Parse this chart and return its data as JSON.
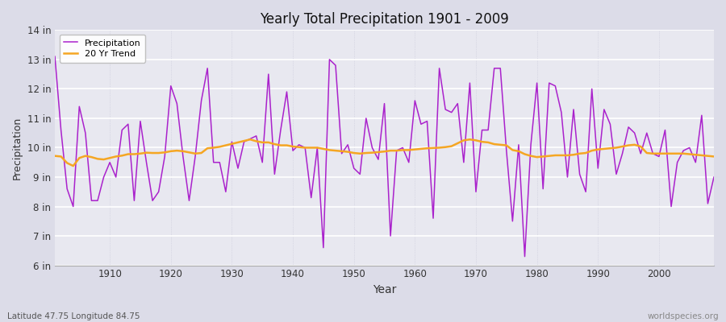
{
  "title": "Yearly Total Precipitation 1901 - 2009",
  "xlabel": "Year",
  "ylabel": "Precipitation",
  "subtitle_left": "Latitude 47.75 Longitude 84.75",
  "subtitle_right": "worldspecies.org",
  "ylim": [
    6,
    14
  ],
  "yticks": [
    6,
    7,
    8,
    9,
    10,
    11,
    12,
    13,
    14
  ],
  "ytick_labels": [
    "6 in",
    "7 in",
    "8 in",
    "9 in",
    "10 in",
    "11 in",
    "12 in",
    "13 in",
    "14 in"
  ],
  "xlim": [
    1901,
    2009
  ],
  "fig_bg_color": "#dcdce8",
  "plot_bg_color": "#e8e8f0",
  "line_color_precip": "#aa22cc",
  "line_color_trend": "#f5a623",
  "legend_labels": [
    "Precipitation",
    "20 Yr Trend"
  ],
  "years": [
    1901,
    1902,
    1903,
    1904,
    1905,
    1906,
    1907,
    1908,
    1909,
    1910,
    1911,
    1912,
    1913,
    1914,
    1915,
    1916,
    1917,
    1918,
    1919,
    1920,
    1921,
    1922,
    1923,
    1924,
    1925,
    1926,
    1927,
    1928,
    1929,
    1930,
    1931,
    1932,
    1933,
    1934,
    1935,
    1936,
    1937,
    1938,
    1939,
    1940,
    1941,
    1942,
    1943,
    1944,
    1945,
    1946,
    1947,
    1948,
    1949,
    1950,
    1951,
    1952,
    1953,
    1954,
    1955,
    1956,
    1957,
    1958,
    1959,
    1960,
    1961,
    1962,
    1963,
    1964,
    1965,
    1966,
    1967,
    1968,
    1969,
    1970,
    1971,
    1972,
    1973,
    1974,
    1975,
    1976,
    1977,
    1978,
    1979,
    1980,
    1981,
    1982,
    1983,
    1984,
    1985,
    1986,
    1987,
    1988,
    1989,
    1990,
    1991,
    1992,
    1993,
    1994,
    1995,
    1996,
    1997,
    1998,
    1999,
    2000,
    2001,
    2002,
    2003,
    2004,
    2005,
    2006,
    2007,
    2008,
    2009
  ],
  "precip": [
    13.1,
    10.6,
    8.6,
    8.0,
    11.4,
    10.5,
    8.2,
    8.2,
    9.0,
    9.5,
    9.0,
    10.6,
    10.8,
    8.2,
    10.9,
    9.5,
    8.2,
    8.5,
    9.7,
    12.1,
    11.5,
    9.7,
    8.2,
    9.7,
    11.6,
    12.7,
    9.5,
    9.5,
    8.5,
    10.2,
    9.3,
    10.2,
    10.3,
    10.4,
    9.5,
    12.5,
    9.1,
    10.6,
    11.9,
    9.9,
    10.1,
    10.0,
    8.3,
    10.0,
    6.6,
    13.0,
    12.8,
    9.8,
    10.1,
    9.3,
    9.1,
    11.0,
    10.0,
    9.6,
    11.5,
    7.0,
    9.9,
    10.0,
    9.5,
    11.6,
    10.8,
    10.9,
    7.6,
    12.7,
    11.3,
    11.2,
    11.5,
    9.5,
    12.2,
    8.5,
    10.6,
    10.6,
    12.7,
    12.7,
    9.9,
    7.5,
    10.1,
    6.3,
    10.1,
    12.2,
    8.6,
    12.2,
    12.1,
    11.2,
    9.0,
    11.3,
    9.1,
    8.5,
    12.0,
    9.3,
    11.3,
    10.8,
    9.1,
    9.8,
    10.7,
    10.5,
    9.8,
    10.5,
    9.8,
    9.7,
    10.6,
    8.0,
    9.5,
    9.9,
    10.0,
    9.5,
    11.1,
    8.1,
    9.0
  ],
  "trend": [
    9.72,
    9.7,
    9.48,
    9.38,
    9.65,
    9.72,
    9.68,
    9.62,
    9.6,
    9.65,
    9.7,
    9.73,
    9.78,
    9.78,
    9.8,
    9.83,
    9.82,
    9.82,
    9.84,
    9.88,
    9.9,
    9.88,
    9.84,
    9.8,
    9.82,
    9.98,
    10.0,
    10.03,
    10.08,
    10.13,
    10.18,
    10.23,
    10.28,
    10.22,
    10.18,
    10.18,
    10.12,
    10.08,
    10.08,
    10.04,
    10.02,
    10.0,
    10.0,
    10.0,
    9.96,
    9.92,
    9.9,
    9.88,
    9.86,
    9.82,
    9.8,
    9.82,
    9.83,
    9.85,
    9.87,
    9.9,
    9.9,
    9.92,
    9.92,
    9.94,
    9.96,
    9.98,
    9.99,
    10.0,
    10.02,
    10.05,
    10.15,
    10.25,
    10.28,
    10.25,
    10.2,
    10.18,
    10.12,
    10.1,
    10.08,
    9.92,
    9.88,
    9.78,
    9.72,
    9.68,
    9.7,
    9.72,
    9.74,
    9.74,
    9.74,
    9.76,
    9.8,
    9.82,
    9.9,
    9.94,
    9.96,
    9.98,
    10.0,
    10.04,
    10.08,
    10.1,
    10.04,
    9.82,
    9.8,
    9.8,
    9.8,
    9.8,
    9.8,
    9.8,
    9.78,
    9.76,
    9.74,
    9.72,
    9.7
  ]
}
